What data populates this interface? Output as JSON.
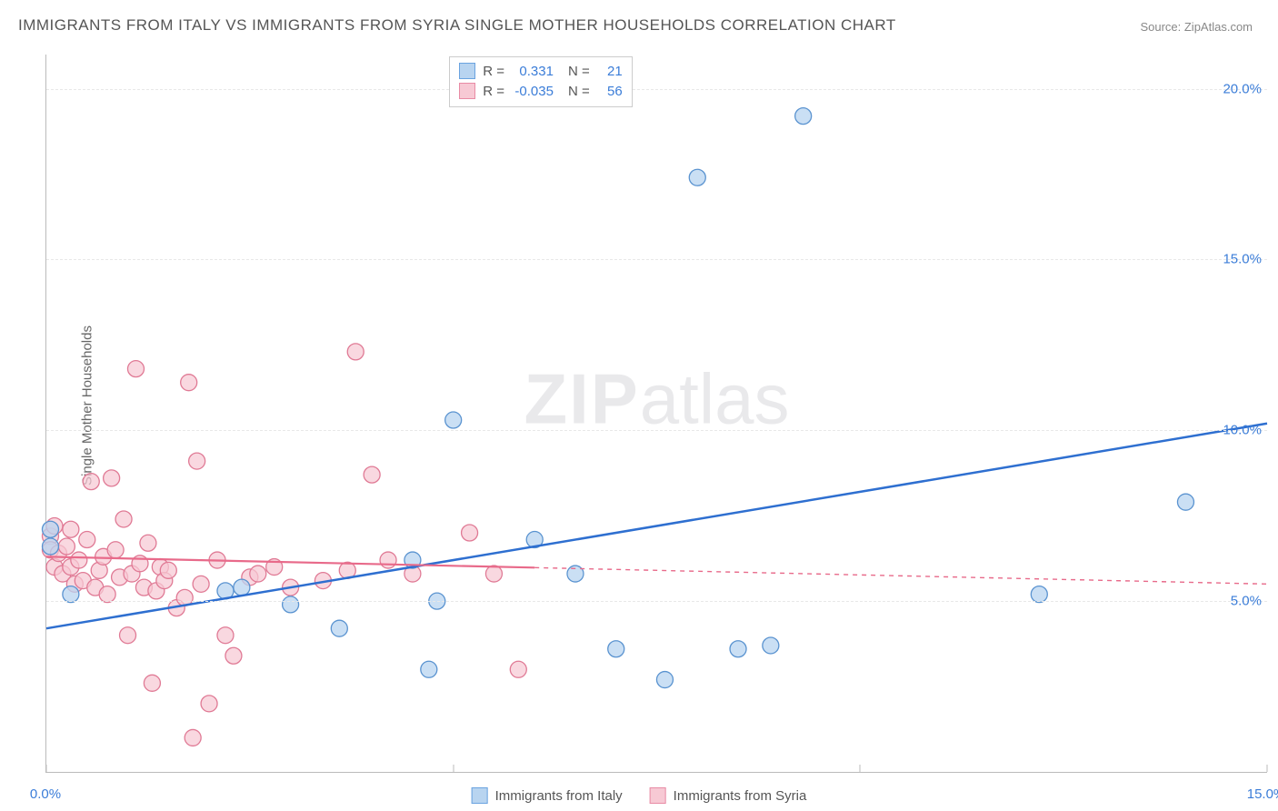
{
  "title": "IMMIGRANTS FROM ITALY VS IMMIGRANTS FROM SYRIA SINGLE MOTHER HOUSEHOLDS CORRELATION CHART",
  "source": "Source: ZipAtlas.com",
  "ylabel": "Single Mother Households",
  "watermark_zip": "ZIP",
  "watermark_atlas": "atlas",
  "chart": {
    "type": "scatter",
    "background_color": "#ffffff",
    "grid_color": "#e8e8e8",
    "axis_color": "#bbbbbb",
    "tick_color": "#3b7dd8",
    "xlim": [
      0,
      15
    ],
    "ylim": [
      0,
      21
    ],
    "xticks": [
      0,
      5,
      10,
      15
    ],
    "xtick_labels": [
      "0.0%",
      "",
      "",
      "15.0%"
    ],
    "yticks": [
      5,
      10,
      15,
      20
    ],
    "ytick_labels": [
      "5.0%",
      "10.0%",
      "15.0%",
      "20.0%"
    ],
    "legend_top": {
      "rows": [
        {
          "swatch_fill": "#b8d4f0",
          "swatch_border": "#6aa3e0",
          "r_label": "R =",
          "r_value": "0.331",
          "n_label": "N =",
          "n_value": "21"
        },
        {
          "swatch_fill": "#f7c9d4",
          "swatch_border": "#e88ba5",
          "r_label": "R =",
          "r_value": "-0.035",
          "n_label": "N =",
          "n_value": "56"
        }
      ]
    },
    "legend_bottom": [
      {
        "swatch_fill": "#b8d4f0",
        "swatch_border": "#6aa3e0",
        "label": "Immigrants from Italy"
      },
      {
        "swatch_fill": "#f7c9d4",
        "swatch_border": "#e88ba5",
        "label": "Immigrants from Syria"
      }
    ],
    "series": [
      {
        "name": "Immigrants from Italy",
        "marker_fill": "#b8d4f0",
        "marker_stroke": "#5a93d0",
        "marker_opacity": 0.75,
        "marker_radius": 9,
        "trend": {
          "color": "#2e6fd0",
          "stroke_width": 2.5,
          "y_at_x0": 4.2,
          "y_at_xmax": 10.2,
          "solid_extent_x": 15
        },
        "points": [
          [
            0.05,
            7.1
          ],
          [
            0.05,
            6.6
          ],
          [
            0.3,
            5.2
          ],
          [
            2.2,
            5.3
          ],
          [
            2.4,
            5.4
          ],
          [
            3.0,
            4.9
          ],
          [
            3.6,
            4.2
          ],
          [
            4.5,
            6.2
          ],
          [
            4.7,
            3.0
          ],
          [
            5.0,
            10.3
          ],
          [
            4.8,
            5.0
          ],
          [
            6.0,
            6.8
          ],
          [
            6.5,
            5.8
          ],
          [
            7.0,
            3.6
          ],
          [
            7.6,
            2.7
          ],
          [
            8.0,
            17.4
          ],
          [
            8.5,
            3.6
          ],
          [
            8.9,
            3.7
          ],
          [
            9.3,
            19.2
          ],
          [
            12.2,
            5.2
          ],
          [
            14.0,
            7.9
          ]
        ]
      },
      {
        "name": "Immigrants from Syria",
        "marker_fill": "#f7c9d4",
        "marker_stroke": "#e07a95",
        "marker_opacity": 0.72,
        "marker_radius": 9,
        "trend": {
          "color": "#e86a8a",
          "stroke_width": 2.2,
          "y_at_x0": 6.3,
          "y_at_xmax": 5.5,
          "solid_extent_x": 6.0
        },
        "points": [
          [
            0.05,
            6.9
          ],
          [
            0.05,
            6.5
          ],
          [
            0.1,
            6.0
          ],
          [
            0.1,
            7.2
          ],
          [
            0.15,
            6.4
          ],
          [
            0.2,
            5.8
          ],
          [
            0.25,
            6.6
          ],
          [
            0.3,
            7.1
          ],
          [
            0.3,
            6.0
          ],
          [
            0.35,
            5.5
          ],
          [
            0.4,
            6.2
          ],
          [
            0.45,
            5.6
          ],
          [
            0.5,
            6.8
          ],
          [
            0.55,
            8.5
          ],
          [
            0.6,
            5.4
          ],
          [
            0.65,
            5.9
          ],
          [
            0.7,
            6.3
          ],
          [
            0.75,
            5.2
          ],
          [
            0.8,
            8.6
          ],
          [
            0.85,
            6.5
          ],
          [
            0.9,
            5.7
          ],
          [
            0.95,
            7.4
          ],
          [
            1.0,
            4.0
          ],
          [
            1.05,
            5.8
          ],
          [
            1.1,
            11.8
          ],
          [
            1.15,
            6.1
          ],
          [
            1.2,
            5.4
          ],
          [
            1.25,
            6.7
          ],
          [
            1.3,
            2.6
          ],
          [
            1.35,
            5.3
          ],
          [
            1.4,
            6.0
          ],
          [
            1.45,
            5.6
          ],
          [
            1.5,
            5.9
          ],
          [
            1.6,
            4.8
          ],
          [
            1.7,
            5.1
          ],
          [
            1.75,
            11.4
          ],
          [
            1.8,
            1.0
          ],
          [
            1.85,
            9.1
          ],
          [
            1.9,
            5.5
          ],
          [
            2.0,
            2.0
          ],
          [
            2.1,
            6.2
          ],
          [
            2.2,
            4.0
          ],
          [
            2.3,
            3.4
          ],
          [
            2.5,
            5.7
          ],
          [
            2.6,
            5.8
          ],
          [
            2.8,
            6.0
          ],
          [
            3.0,
            5.4
          ],
          [
            3.4,
            5.6
          ],
          [
            3.7,
            5.9
          ],
          [
            3.8,
            12.3
          ],
          [
            4.0,
            8.7
          ],
          [
            4.2,
            6.2
          ],
          [
            4.5,
            5.8
          ],
          [
            5.2,
            7.0
          ],
          [
            5.5,
            5.8
          ],
          [
            5.8,
            3.0
          ]
        ]
      }
    ]
  }
}
